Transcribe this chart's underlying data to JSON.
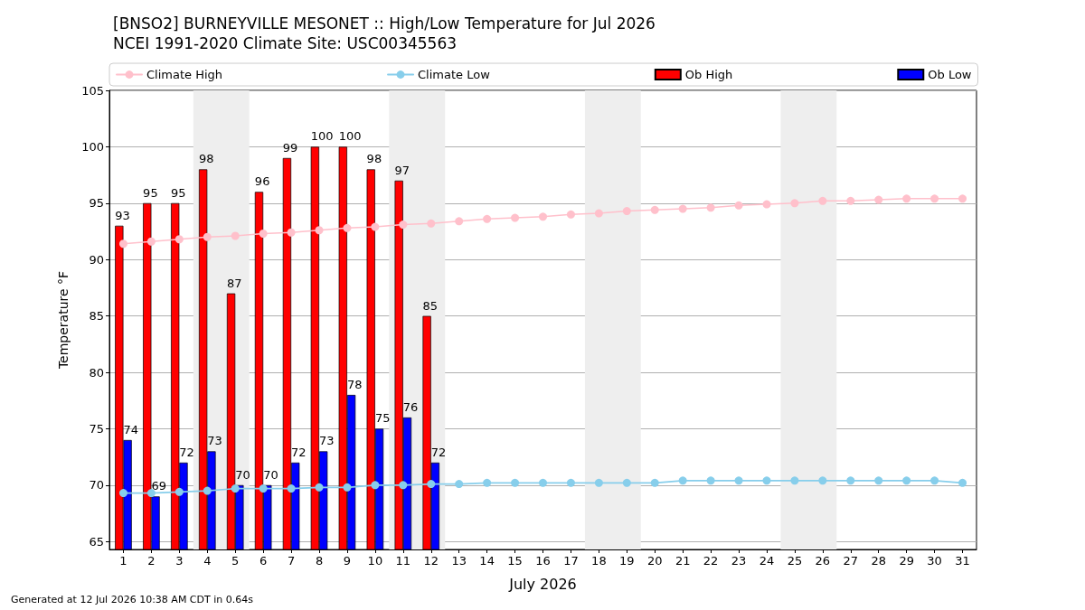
{
  "chart_data": {
    "type": "bar",
    "title": "[BNSO2] BURNEYVILLE MESONET :: High/Low Temperature for Jul 2026",
    "subtitle": "NCEI 1991-2020 Climate Site: USC00345563",
    "xlabel": "July 2026",
    "ylabel": "Temperature °F",
    "annotations": [
      "Generated at 12 Jul 2026 10:38 AM CDT in 0.64s"
    ],
    "x": [
      1,
      2,
      3,
      4,
      5,
      6,
      7,
      8,
      9,
      10,
      11,
      12,
      13,
      14,
      15,
      16,
      17,
      18,
      19,
      20,
      21,
      22,
      23,
      24,
      25,
      26,
      27,
      28,
      29,
      30,
      31
    ],
    "series": [
      {
        "name": "Climate High",
        "type": "line",
        "color": "#ffc0cb",
        "values": [
          91.4,
          91.6,
          91.8,
          92.0,
          92.1,
          92.3,
          92.4,
          92.6,
          92.8,
          92.9,
          93.1,
          93.2,
          93.4,
          93.6,
          93.7,
          93.8,
          94.0,
          94.1,
          94.3,
          94.4,
          94.5,
          94.6,
          94.8,
          94.9,
          95.0,
          95.2,
          95.2,
          95.3,
          95.4,
          95.4,
          95.4
        ]
      },
      {
        "name": "Climate Low",
        "type": "line",
        "color": "#87ceeb",
        "values": [
          69.3,
          69.3,
          69.4,
          69.5,
          69.7,
          69.7,
          69.7,
          69.8,
          69.8,
          70.0,
          70.0,
          70.1,
          70.1,
          70.2,
          70.2,
          70.2,
          70.2,
          70.2,
          70.2,
          70.2,
          70.4,
          70.4,
          70.4,
          70.4,
          70.4,
          70.4,
          70.4,
          70.4,
          70.4,
          70.4,
          70.2
        ]
      },
      {
        "name": "Ob High",
        "color": "#ff0000",
        "values": [
          93,
          95,
          95,
          98,
          87,
          96,
          99,
          100,
          100,
          98,
          97,
          85,
          null,
          null,
          null,
          null,
          null,
          null,
          null,
          null,
          null,
          null,
          null,
          null,
          null,
          null,
          null,
          null,
          null,
          null,
          null
        ],
        "value_labels": [
          "93",
          "95",
          "95",
          "98",
          "87",
          "96",
          "99",
          "100",
          "100",
          "98",
          "97",
          "85",
          null,
          null,
          null,
          null,
          null,
          null,
          null,
          null,
          null,
          null,
          null,
          null,
          null,
          null,
          null,
          null,
          null,
          null,
          null
        ]
      },
      {
        "name": "Ob Low",
        "color": "#0000ff",
        "values": [
          74,
          69,
          72,
          73,
          70,
          70,
          72,
          73,
          78,
          75,
          76,
          72,
          null,
          null,
          null,
          null,
          null,
          null,
          null,
          null,
          null,
          null,
          null,
          null,
          null,
          null,
          null,
          null,
          null,
          null,
          null
        ],
        "value_labels": [
          "74",
          "69",
          "72",
          "73",
          "70",
          "70",
          "72",
          "73",
          "78",
          "75",
          "76",
          "72",
          null,
          null,
          null,
          null,
          null,
          null,
          null,
          null,
          null,
          null,
          null,
          null,
          null,
          null,
          null,
          null,
          null,
          null,
          null
        ]
      }
    ],
    "xlim": [
      0.5,
      31.5
    ],
    "xticks": [
      1,
      2,
      3,
      4,
      5,
      6,
      7,
      8,
      9,
      10,
      11,
      12,
      13,
      14,
      15,
      16,
      17,
      18,
      19,
      20,
      21,
      22,
      23,
      24,
      25,
      26,
      27,
      28,
      29,
      30,
      31
    ],
    "ylim": [
      64.3,
      105
    ],
    "yticks": [
      65,
      70,
      75,
      80,
      85,
      90,
      95,
      100,
      105
    ],
    "bands": [
      {
        "axis": "x",
        "from": 3.5,
        "to": 5.5,
        "color": "#eeeeee"
      },
      {
        "axis": "x",
        "from": 10.5,
        "to": 12.5,
        "color": "#eeeeee"
      },
      {
        "axis": "x",
        "from": 17.5,
        "to": 19.5,
        "color": "#eeeeee"
      },
      {
        "axis": "x",
        "from": 24.5,
        "to": 26.5,
        "color": "#eeeeee"
      }
    ],
    "grid": "y",
    "legend": "top",
    "marker": "circle",
    "line_style": "solid"
  }
}
